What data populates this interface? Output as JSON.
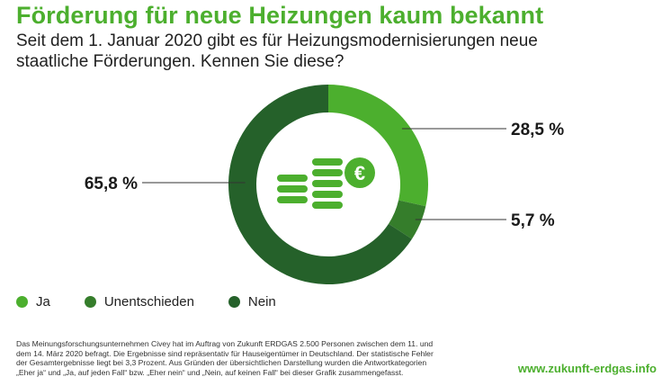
{
  "header": {
    "title": "Förderung für neue Heizungen kaum bekannt",
    "subtitle": "Seit dem 1. Januar 2020 gibt es für Heizungsmodernisierungen neue staatliche Förderungen. Kennen Sie diese?"
  },
  "chart_data": {
    "type": "pie",
    "categories": [
      "Ja",
      "Unentschieden",
      "Nein"
    ],
    "values": [
      28.5,
      5.7,
      65.8
    ],
    "data_labels": [
      "28,5 %",
      "5,7 %",
      "65,8 %"
    ],
    "colors": [
      "#4caf2e",
      "#357d2b",
      "#25612a"
    ],
    "legend_position": "bottom-left"
  },
  "center_icon": "money-euro-icon",
  "footnote": "Das Meinungsforschungsunternehmen Civey hat im Auftrag von Zukunft ERDGAS 2.500 Personen zwischen dem 11. und dem 14. März 2020 befragt. Die Ergebnisse sind repräsentativ für Hauseigentümer in Deutschland. Der statistische Fehler der Gesamtergebnisse liegt bei 3,3 Prozent. Aus Gründen der übersichtlichen Darstellung wurden die Antwortkategorien „Eher ja“ und „Ja, auf jeden Fall“ bzw. „Eher nein“ und „Nein, auf keinen Fall“ bei dieser Grafik zusammengefasst.",
  "url": "www.zukunft-erdgas.info"
}
